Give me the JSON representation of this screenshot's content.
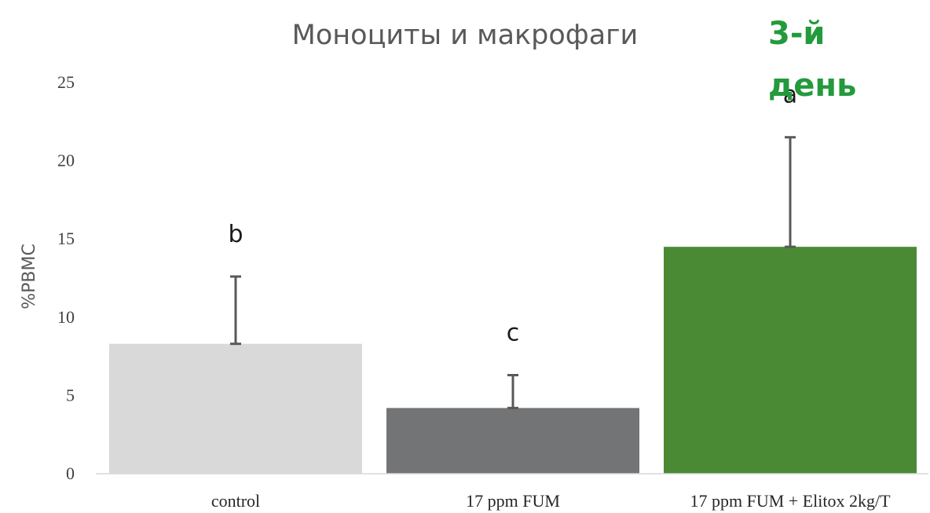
{
  "chart_data": {
    "type": "bar",
    "title": "Моноциты и макрофаги",
    "badge": [
      "3-й",
      "день"
    ],
    "ylabel": "%PBMC",
    "xlabel": "",
    "ylim": [
      0,
      25
    ],
    "yticks": [
      "0",
      "5",
      "10",
      "15",
      "20",
      "25"
    ],
    "categories": [
      "control",
      "17 ppm FUM",
      "17 ppm FUM + Elitox  2kg/T"
    ],
    "values": [
      8.3,
      4.2,
      14.5
    ],
    "errors": [
      4.3,
      2.1,
      7.0
    ],
    "significance": [
      "b",
      "c",
      "a"
    ],
    "colors": [
      "#d9d9d9",
      "#737476",
      "#4a8a35"
    ],
    "grid": false,
    "legend": "none"
  }
}
